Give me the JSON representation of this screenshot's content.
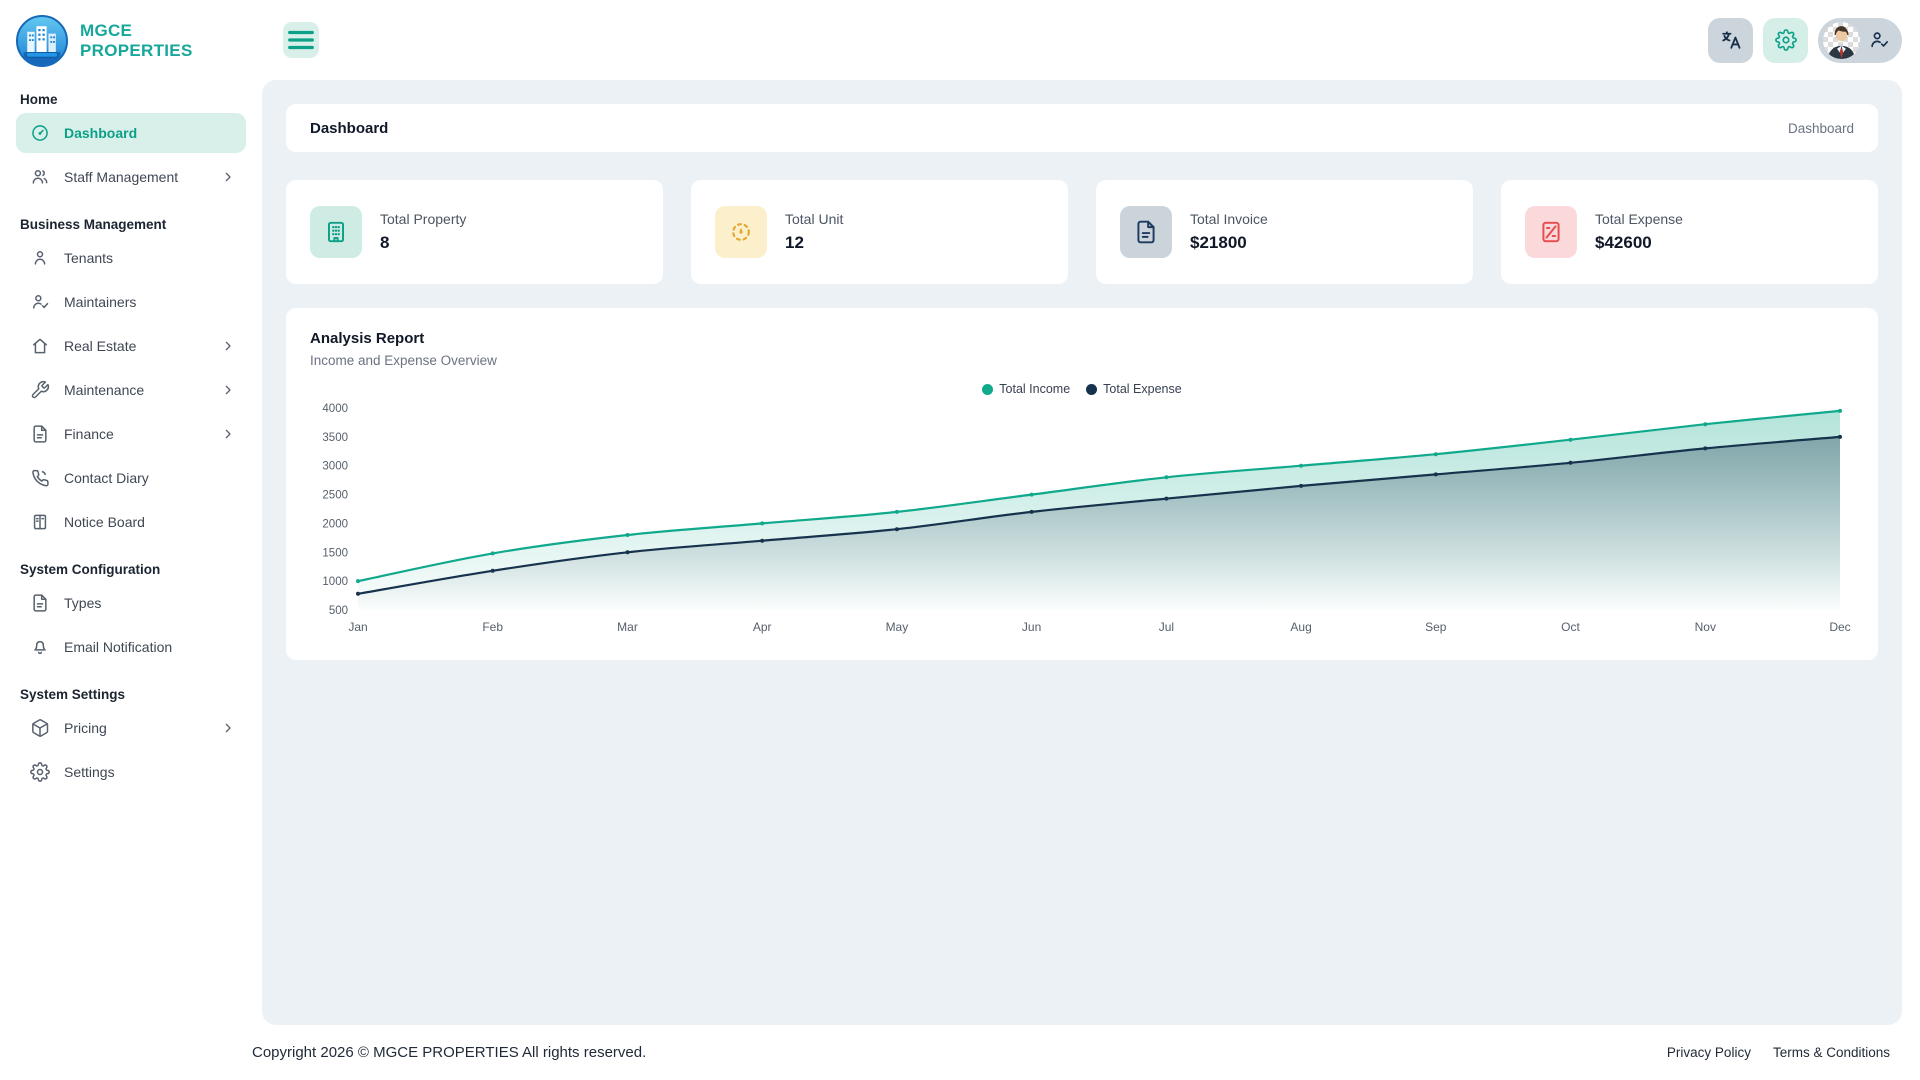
{
  "brand": {
    "name": "MGCE PROPERTIES"
  },
  "topbar": {
    "actions": [
      {
        "name": "translate-button",
        "icon": "translate",
        "style": "gray"
      },
      {
        "name": "settings-button",
        "icon": "gear",
        "style": "mint"
      }
    ],
    "profile": {
      "avatar": "user-photo",
      "status_icon": "user-check"
    }
  },
  "sidebar": {
    "sections": [
      {
        "label": "Home",
        "items": [
          {
            "label": "Dashboard",
            "icon": "dashboard",
            "active": true,
            "chevron": false
          },
          {
            "label": "Staff Management",
            "icon": "users",
            "active": false,
            "chevron": true
          }
        ]
      },
      {
        "label": "Business Management",
        "items": [
          {
            "label": "Tenants",
            "icon": "user",
            "active": false,
            "chevron": false
          },
          {
            "label": "Maintainers",
            "icon": "user-check",
            "active": false,
            "chevron": false
          },
          {
            "label": "Real Estate",
            "icon": "home",
            "active": false,
            "chevron": true
          },
          {
            "label": "Maintenance",
            "icon": "wrench",
            "active": false,
            "chevron": true
          },
          {
            "label": "Finance",
            "icon": "file",
            "active": false,
            "chevron": true
          },
          {
            "label": "Contact Diary",
            "icon": "phone",
            "active": false,
            "chevron": false
          },
          {
            "label": "Notice Board",
            "icon": "board",
            "active": false,
            "chevron": false
          }
        ]
      },
      {
        "label": "System Configuration",
        "items": [
          {
            "label": "Types",
            "icon": "file",
            "active": false,
            "chevron": false
          },
          {
            "label": "Email Notification",
            "icon": "bell",
            "active": false,
            "chevron": false
          }
        ]
      },
      {
        "label": "System Settings",
        "items": [
          {
            "label": "Pricing",
            "icon": "box",
            "active": false,
            "chevron": true
          },
          {
            "label": "Settings",
            "icon": "gear",
            "active": false,
            "chevron": false
          }
        ]
      }
    ]
  },
  "page": {
    "title": "Dashboard",
    "breadcrumb": "Dashboard"
  },
  "stats": [
    {
      "label": "Total Property",
      "value": "8",
      "icon": "building",
      "icon_color": "#0e9f87",
      "icon_bg": "#cfece4"
    },
    {
      "label": "Total Unit",
      "value": "12",
      "icon": "unit",
      "icon_color": "#e3a82d",
      "icon_bg": "#fcefcc"
    },
    {
      "label": "Total Invoice",
      "value": "$21800",
      "icon": "invoice",
      "icon_color": "#1d3a5f",
      "icon_bg": "#ccd4db"
    },
    {
      "label": "Total Expense",
      "value": "$42600",
      "icon": "expense",
      "icon_color": "#e74c4c",
      "icon_bg": "#fbd8da"
    }
  ],
  "chart_card": {
    "title": "Analysis Report",
    "subtitle": "Income and Expense Overview"
  },
  "chart_data": {
    "type": "area",
    "x": [
      "Jan",
      "Feb",
      "Mar",
      "Apr",
      "May",
      "Jun",
      "Jul",
      "Aug",
      "Sep",
      "Oct",
      "Nov",
      "Dec"
    ],
    "series": [
      {
        "name": "Total Income",
        "color": "#10a98c",
        "values": [
          1000,
          1480,
          1800,
          2000,
          2200,
          2500,
          2800,
          3000,
          3200,
          3450,
          3720,
          3950
        ]
      },
      {
        "name": "Total Expense",
        "color": "#16324c",
        "values": [
          780,
          1180,
          1500,
          1700,
          1900,
          2200,
          2430,
          2650,
          2850,
          3050,
          3300,
          3500
        ]
      }
    ],
    "y_min": 500,
    "y_max": 4000,
    "y_ticks": [
      4000,
      3500,
      3000,
      2500,
      2000,
      1500,
      1000,
      500
    ],
    "legend_position": "top-center",
    "grid": "none",
    "smooth": true,
    "markers": true
  },
  "footer": {
    "copyright": "Copyright 2026 © MGCE PROPERTIES All rights reserved.",
    "links": [
      {
        "label": "Privacy Policy"
      },
      {
        "label": "Terms & Conditions"
      }
    ]
  }
}
